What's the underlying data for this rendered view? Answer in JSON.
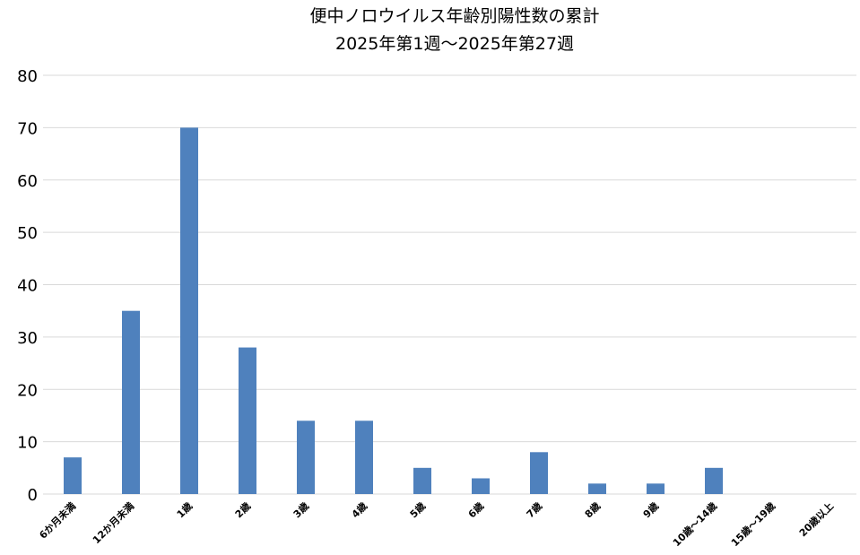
{
  "chart_data": {
    "type": "bar",
    "title": "便中ノロウイルス年齢別陽性数の累計",
    "subtitle": "2025年第1週～2025年第27週",
    "xlabel": "",
    "ylabel": "",
    "categories": [
      "6か月未満",
      "12か月未満",
      "1歳",
      "2歳",
      "3歳",
      "4歳",
      "5歳",
      "6歳",
      "7歳",
      "8歳",
      "9歳",
      "10歳～14歳",
      "15歳～19歳",
      "20歳以上"
    ],
    "values": [
      7,
      35,
      70,
      28,
      14,
      14,
      5,
      3,
      8,
      2,
      2,
      5,
      0,
      0
    ],
    "ylim": [
      0,
      80
    ],
    "yticks": [
      0,
      10,
      20,
      30,
      40,
      50,
      60,
      70,
      80
    ],
    "grid": true,
    "legend": "none",
    "bar_color": "#4f81bd"
  }
}
